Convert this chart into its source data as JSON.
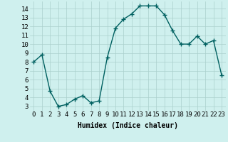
{
  "x": [
    0,
    1,
    2,
    3,
    4,
    5,
    6,
    7,
    8,
    9,
    10,
    11,
    12,
    13,
    14,
    15,
    16,
    17,
    18,
    19,
    20,
    21,
    22,
    23
  ],
  "y": [
    8,
    8.8,
    4.7,
    3.0,
    3.2,
    3.8,
    4.2,
    3.4,
    3.6,
    8.5,
    11.8,
    12.8,
    13.4,
    14.3,
    14.3,
    14.3,
    13.3,
    11.5,
    10.0,
    10.0,
    10.9,
    10.0,
    10.4,
    6.5
  ],
  "line_color": "#006060",
  "marker": "+",
  "markersize": 4,
  "linewidth": 1.0,
  "markeredgewidth": 1.0,
  "bg_color": "#cff0ee",
  "grid_color": "#aacfcc",
  "xlabel": "Humidex (Indice chaleur)",
  "ylim_min": 2.5,
  "ylim_max": 14.8,
  "xlim_min": -0.5,
  "xlim_max": 23.5,
  "yticks": [
    3,
    4,
    5,
    6,
    7,
    8,
    9,
    10,
    11,
    12,
    13,
    14
  ],
  "xticks": [
    0,
    1,
    2,
    3,
    4,
    5,
    6,
    7,
    8,
    9,
    10,
    11,
    12,
    13,
    14,
    15,
    16,
    17,
    18,
    19,
    20,
    21,
    22,
    23
  ],
  "xlabel_fontsize": 7,
  "tick_fontsize": 6.5
}
